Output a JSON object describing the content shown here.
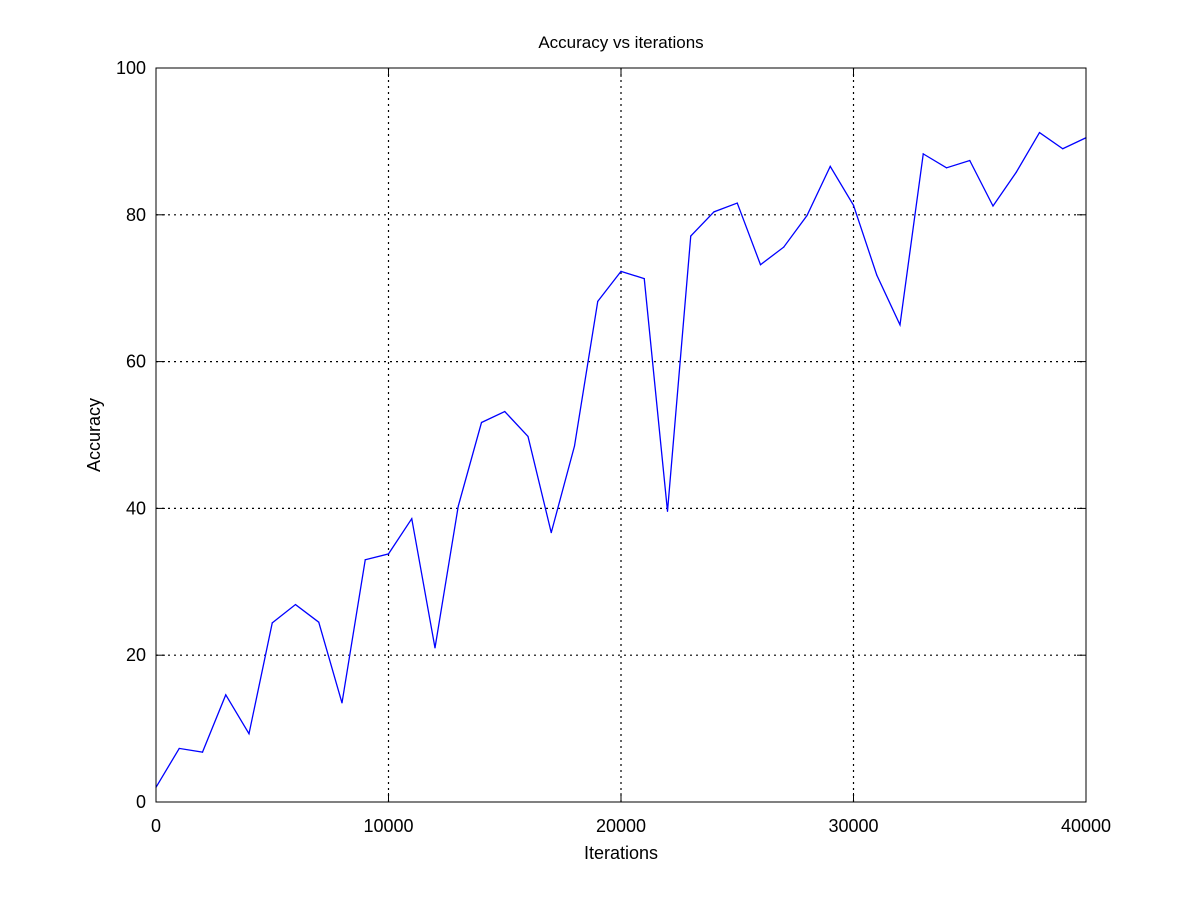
{
  "chart_data": {
    "type": "line",
    "title": "Accuracy vs iterations",
    "xlabel": "Iterations",
    "ylabel": "Accuracy",
    "xlim": [
      0,
      40000
    ],
    "ylim": [
      0,
      100
    ],
    "x_ticks": [
      0,
      10000,
      20000,
      30000,
      40000
    ],
    "y_ticks": [
      0,
      20,
      40,
      60,
      80,
      100
    ],
    "grid": true,
    "grid_style": "dotted",
    "legend": "none",
    "colors": {
      "series": "#0000ff",
      "grid": "#000000",
      "axes": "#000000"
    },
    "series": [
      {
        "x": [
          0,
          1000,
          2000,
          3000,
          4000,
          5000,
          6000,
          7000,
          8000,
          9000,
          10000,
          11000,
          12000,
          13000,
          14000,
          15000,
          16000,
          17000,
          18000,
          19000,
          20000,
          21000,
          22000,
          23000,
          24000,
          25000,
          26000,
          27000,
          28000,
          29000,
          30000,
          31000,
          32000,
          33000,
          34000,
          35000,
          36000,
          37000,
          38000,
          39000,
          40000
        ],
        "y": [
          2.0,
          7.3,
          6.8,
          14.6,
          9.3,
          24.4,
          26.9,
          24.5,
          13.5,
          33.0,
          33.8,
          38.6,
          21.0,
          40.3,
          51.7,
          53.2,
          49.8,
          36.7,
          48.5,
          68.2,
          72.3,
          71.3,
          39.6,
          77.1,
          80.4,
          81.6,
          73.2,
          75.6,
          79.9,
          86.6,
          81.3,
          71.8,
          65.0,
          88.3,
          86.4,
          87.4,
          81.2,
          85.8,
          91.2,
          89.0,
          90.5
        ]
      }
    ]
  }
}
